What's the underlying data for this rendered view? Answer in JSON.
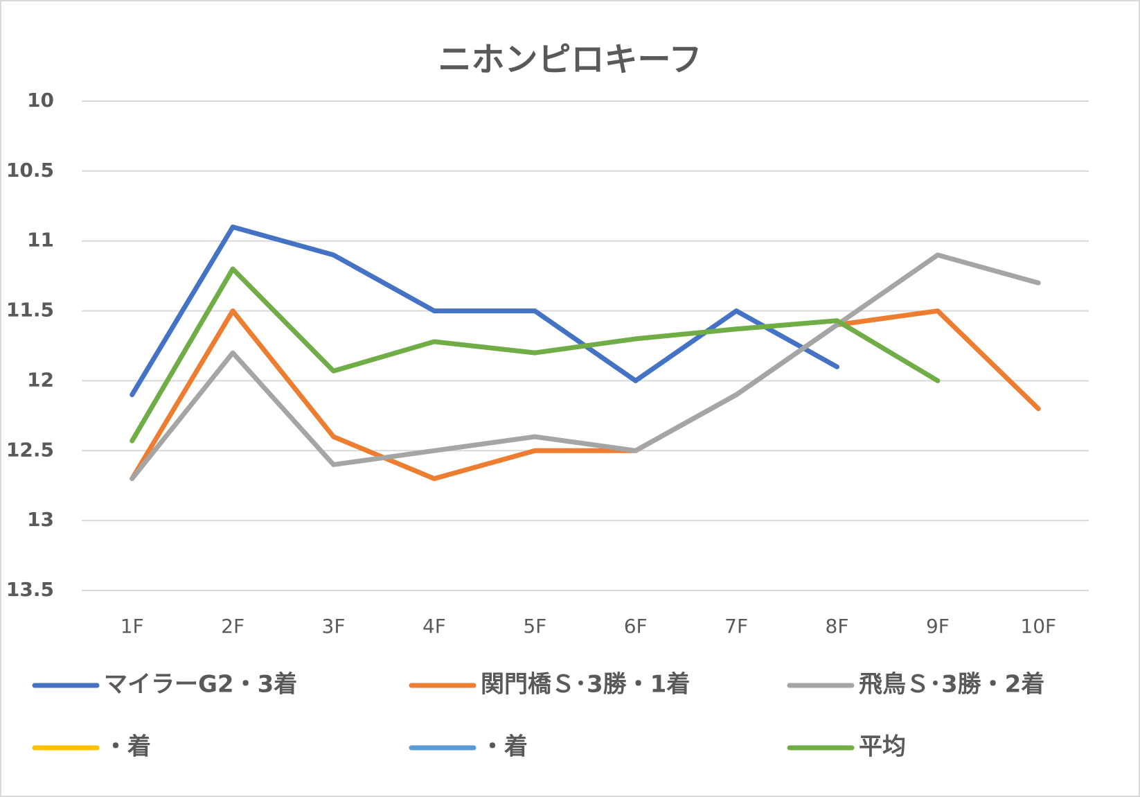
{
  "chart_data": {
    "type": "line",
    "title": "ニホンピロキーフ",
    "categories": [
      "1F",
      "2F",
      "3F",
      "4F",
      "5F",
      "6F",
      "7F",
      "8F",
      "9F",
      "10F"
    ],
    "series": [
      {
        "name": "マイラーG2・3着",
        "color": "#4472c4",
        "values": [
          12.1,
          10.9,
          11.1,
          11.5,
          11.5,
          12.0,
          11.5,
          11.9,
          null,
          null
        ]
      },
      {
        "name": "関門橋Ｓ･3勝・1着",
        "color": "#ed7d31",
        "values": [
          12.7,
          11.5,
          12.4,
          12.7,
          12.5,
          12.5,
          12.1,
          11.6,
          11.5,
          12.2
        ]
      },
      {
        "name": "飛鳥Ｓ･3勝・2着",
        "color": "#a5a5a5",
        "values": [
          12.7,
          11.8,
          12.6,
          12.5,
          12.4,
          12.5,
          12.1,
          11.6,
          11.1,
          11.3
        ]
      },
      {
        "name": "・着",
        "color": "#ffc000",
        "values": [
          null,
          null,
          null,
          null,
          null,
          null,
          null,
          null,
          null,
          null
        ]
      },
      {
        "name": "・着",
        "color": "#5b9bd5",
        "values": [
          null,
          null,
          null,
          null,
          null,
          null,
          null,
          null,
          null,
          null
        ]
      },
      {
        "name": "平均",
        "color": "#70ad47",
        "values": [
          12.43,
          11.2,
          11.93,
          11.72,
          11.8,
          11.7,
          11.63,
          11.57,
          12.0,
          null
        ]
      }
    ],
    "ylim": [
      10,
      13.5
    ],
    "yticks": [
      10,
      10.5,
      11,
      11.5,
      12,
      12.5,
      13,
      13.5
    ],
    "y_reversed": true,
    "grid": true,
    "legend": "bottom"
  }
}
